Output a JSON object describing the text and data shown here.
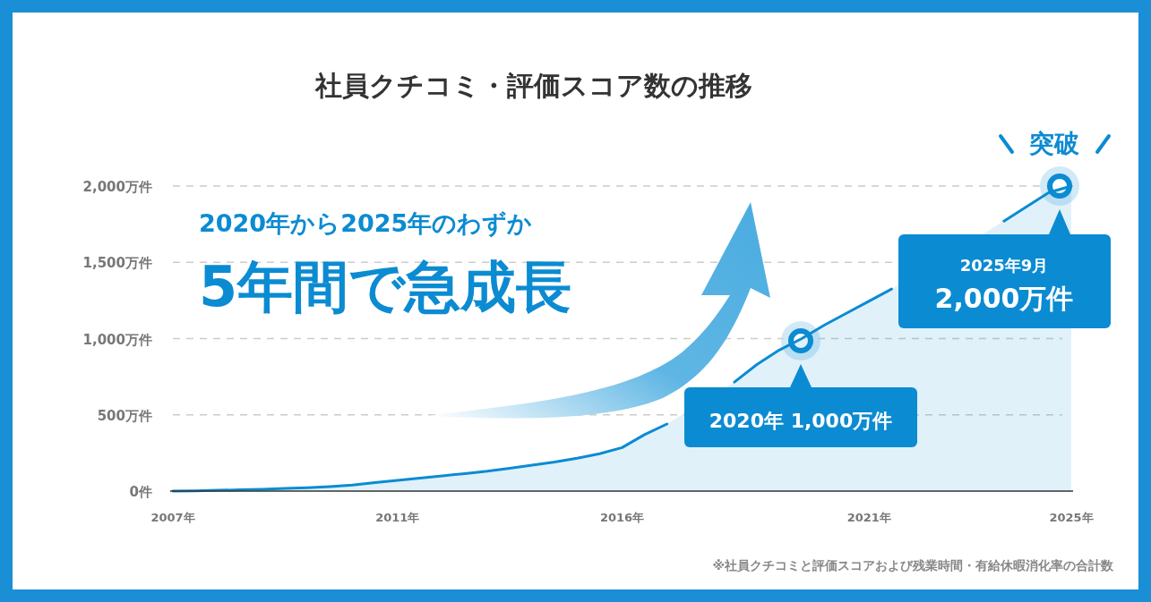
{
  "chart_data": {
    "type": "area",
    "title": "社員クチコミ・評価スコア数の推移",
    "categories": [
      "2007年",
      null,
      null,
      null,
      null,
      null,
      null,
      null,
      null,
      null,
      "2011年",
      null,
      null,
      null,
      null,
      null,
      null,
      null,
      null,
      null,
      "2016年",
      null,
      null,
      null,
      null,
      null,
      null,
      null,
      null,
      null,
      null,
      "2021年",
      null,
      null,
      null,
      null,
      null,
      null,
      null,
      null,
      "2025年"
    ],
    "series": [
      {
        "color": "#0b8bd2",
        "values": [
          0,
          2,
          5,
          8,
          12,
          17,
          22,
          30,
          40,
          55,
          70,
          85,
          100,
          115,
          130,
          150,
          170,
          190,
          215,
          245,
          285,
          370,
          440,
          null,
          null,
          715,
          830,
          925,
          1000,
          1088,
          1167,
          1246,
          1325,
          null,
          null,
          null,
          null,
          1770,
          1864,
          1958,
          2000
        ]
      }
    ],
    "ylim": [
      0,
      2000
    ],
    "yticks": [
      {
        "value": 0,
        "label": "0件"
      },
      {
        "value": 500,
        "label": "500万件"
      },
      {
        "value": 1000,
        "label": "1,000万件"
      },
      {
        "value": 1500,
        "label": "1,500万件"
      },
      {
        "value": 2000,
        "label": "2,000万件"
      }
    ],
    "grid": "y",
    "line_style": "solid",
    "annotations": [
      "2020年から2025年のわずか",
      "5年間で急成長",
      "突破",
      "2020年 1,000万件",
      "2025年9月",
      "2,000万件",
      "※社員クチコミと評価スコアおよび残業時間・有給休暇消化率の合計数"
    ]
  }
}
